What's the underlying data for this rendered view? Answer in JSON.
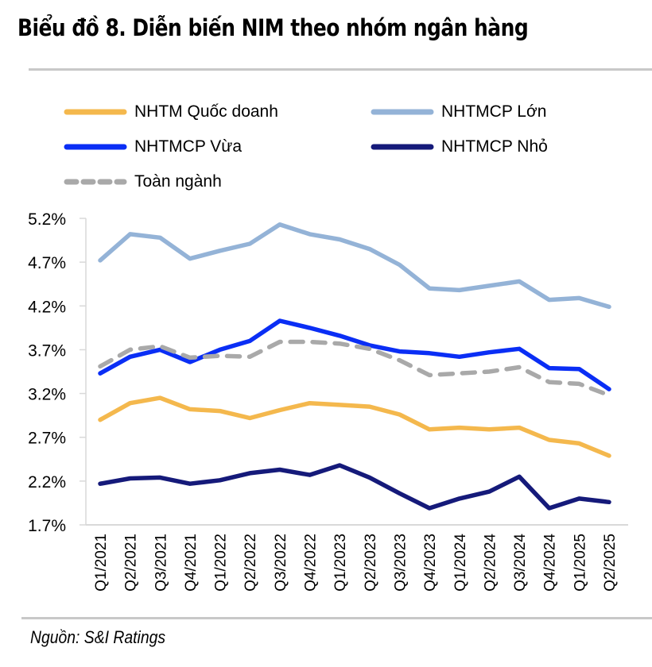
{
  "header": {
    "title": "Biểu đồ 8. Diễn biến NIM theo nhóm ngân hàng"
  },
  "footer": {
    "source": "Nguồn: S&I Ratings"
  },
  "legend": {
    "items": [
      {
        "label": "NHTM Quốc doanh",
        "color": "#F4B84D",
        "style": "solid"
      },
      {
        "label": "NHTMCP Lớn",
        "color": "#94B3D7",
        "style": "solid"
      },
      {
        "label": "NHTMCP Vừa",
        "color": "#0A2EF5",
        "style": "solid"
      },
      {
        "label": "NHTMCP Nhỏ",
        "color": "#151A7A",
        "style": "solid"
      },
      {
        "label": "Toàn ngành",
        "color": "#A9A9A9",
        "style": "dashed"
      }
    ]
  },
  "chart_data": {
    "type": "line",
    "title": "Biểu đồ 8. Diễn biến NIM theo nhóm ngân hàng",
    "xlabel": "",
    "ylabel": "",
    "ylim": [
      1.7,
      5.2
    ],
    "yticks": [
      "5.2%",
      "4.7%",
      "4.2%",
      "3.7%",
      "3.2%",
      "2.7%",
      "2.2%",
      "1.7%"
    ],
    "ytick_values": [
      5.2,
      4.7,
      4.2,
      3.7,
      3.2,
      2.7,
      2.2,
      1.7
    ],
    "grid": false,
    "legend_position": "top",
    "categories": [
      "Q1/2021",
      "Q2/2021",
      "Q3/2021",
      "Q4/2021",
      "Q1/2022",
      "Q2/2022",
      "Q3/2022",
      "Q4/2022",
      "Q1/2023",
      "Q2/2023",
      "Q3/2023",
      "Q4/2023",
      "Q1/2024",
      "Q2/2024",
      "Q3/2024",
      "Q4/2024",
      "Q1/2025",
      "Q2/2025"
    ],
    "series": [
      {
        "name": "NHTM Quốc doanh",
        "color": "#F4B84D",
        "dash": false,
        "values": [
          2.9,
          3.09,
          3.15,
          3.02,
          3.0,
          2.92,
          3.01,
          3.09,
          3.07,
          3.05,
          2.96,
          2.79,
          2.81,
          2.79,
          2.81,
          2.67,
          2.63,
          2.49
        ]
      },
      {
        "name": "NHTMCP Lớn",
        "color": "#94B3D7",
        "dash": false,
        "values": [
          4.72,
          5.02,
          4.98,
          4.74,
          4.83,
          4.91,
          5.13,
          5.02,
          4.96,
          4.85,
          4.67,
          4.4,
          4.38,
          4.43,
          4.48,
          4.27,
          4.29,
          4.19
        ]
      },
      {
        "name": "NHTMCP Vừa",
        "color": "#0A2EF5",
        "dash": false,
        "values": [
          3.43,
          3.62,
          3.7,
          3.56,
          3.7,
          3.8,
          4.03,
          3.95,
          3.86,
          3.75,
          3.68,
          3.66,
          3.62,
          3.67,
          3.71,
          3.49,
          3.48,
          3.25
        ]
      },
      {
        "name": "NHTMCP Nhỏ",
        "color": "#151A7A",
        "dash": false,
        "values": [
          2.17,
          2.23,
          2.24,
          2.17,
          2.21,
          2.29,
          2.33,
          2.27,
          2.38,
          2.24,
          2.06,
          1.89,
          2.0,
          2.08,
          2.25,
          1.89,
          2.0,
          1.96
        ]
      },
      {
        "name": "Toàn ngành",
        "color": "#A9A9A9",
        "dash": true,
        "values": [
          3.51,
          3.7,
          3.74,
          3.61,
          3.63,
          3.62,
          3.79,
          3.79,
          3.77,
          3.71,
          3.58,
          3.41,
          3.43,
          3.45,
          3.5,
          3.33,
          3.31,
          3.18
        ]
      }
    ]
  }
}
